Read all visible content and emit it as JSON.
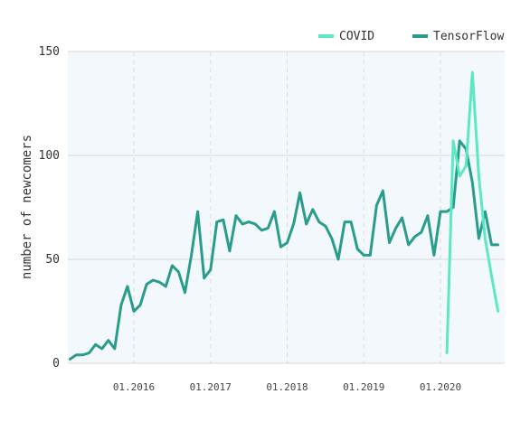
{
  "chart_data": {
    "type": "line",
    "title": "",
    "xlabel": "",
    "ylabel": "number of newcomers",
    "ylim": [
      0,
      150
    ],
    "yticks": [
      0,
      50,
      100,
      150
    ],
    "xticks": [
      "01.2016",
      "01.2017",
      "01.2018",
      "01.2019",
      "01.2020"
    ],
    "grid": true,
    "legend_position": "top-right",
    "series": [
      {
        "name": "COVID",
        "color": "#5ce8c2",
        "x": [
          "2020-02",
          "2020-03",
          "2020-04",
          "2020-05",
          "2020-06",
          "2020-07",
          "2020-08",
          "2020-09",
          "2020-10"
        ],
        "values": [
          5,
          107,
          90,
          95,
          140,
          90,
          60,
          42,
          25
        ]
      },
      {
        "name": "TensorFlow",
        "color": "#2a9c8c",
        "x": [
          "2015-03",
          "2015-04",
          "2015-05",
          "2015-06",
          "2015-07",
          "2015-08",
          "2015-09",
          "2015-10",
          "2015-11",
          "2015-12",
          "2016-01",
          "2016-02",
          "2016-03",
          "2016-04",
          "2016-05",
          "2016-06",
          "2016-07",
          "2016-08",
          "2016-09",
          "2016-10",
          "2016-11",
          "2016-12",
          "2017-01",
          "2017-02",
          "2017-03",
          "2017-04",
          "2017-05",
          "2017-06",
          "2017-07",
          "2017-08",
          "2017-09",
          "2017-10",
          "2017-11",
          "2017-12",
          "2018-01",
          "2018-02",
          "2018-03",
          "2018-04",
          "2018-05",
          "2018-06",
          "2018-07",
          "2018-08",
          "2018-09",
          "2018-10",
          "2018-11",
          "2018-12",
          "2019-01",
          "2019-02",
          "2019-03",
          "2019-04",
          "2019-05",
          "2019-06",
          "2019-07",
          "2019-08",
          "2019-09",
          "2019-10",
          "2019-11",
          "2019-12",
          "2020-01",
          "2020-02",
          "2020-03",
          "2020-04",
          "2020-05",
          "2020-06",
          "2020-07",
          "2020-08",
          "2020-09",
          "2020-10"
        ],
        "values": [
          2,
          4,
          4,
          5,
          9,
          7,
          11,
          7,
          28,
          37,
          25,
          28,
          38,
          40,
          39,
          37,
          47,
          44,
          34,
          52,
          73,
          41,
          45,
          68,
          69,
          54,
          71,
          67,
          68,
          67,
          64,
          65,
          73,
          56,
          58,
          67,
          82,
          67,
          74,
          68,
          66,
          60,
          50,
          68,
          68,
          55,
          52,
          52,
          76,
          83,
          58,
          65,
          70,
          57,
          61,
          63,
          71,
          52,
          73,
          73,
          75,
          107,
          103,
          87,
          60,
          73,
          57,
          57
        ]
      }
    ]
  }
}
